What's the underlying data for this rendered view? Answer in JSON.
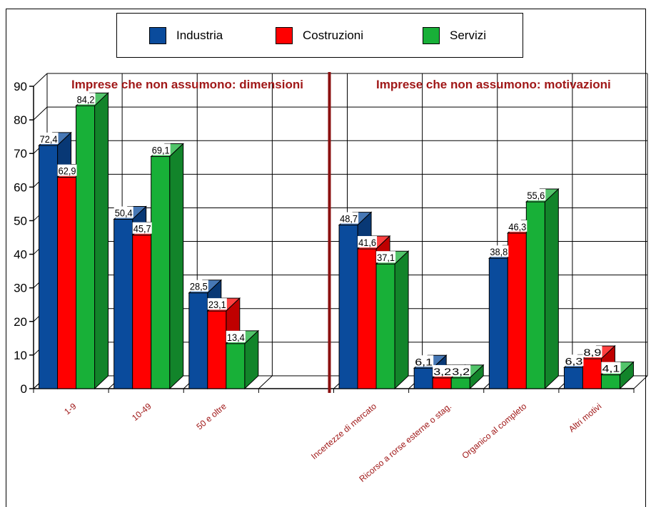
{
  "chart_data": {
    "type": "bar",
    "style": "3d-grouped",
    "section_titles": [
      "Imprese che non assumono:  dimensioni",
      "Imprese che non assumono:  motivazioni"
    ],
    "categories": [
      "1-9",
      "10-49",
      "50 e oltre",
      "",
      "Incertezze di mercato",
      "Ricorso a rorse esterne o stag.",
      "Organico al completo",
      "Altri motivi"
    ],
    "series": [
      {
        "name": "Industria",
        "color": "#0a4b9c",
        "values": [
          72.4,
          50.4,
          28.5,
          null,
          48.7,
          6.1,
          38.8,
          6.3
        ],
        "labels": [
          "72,4",
          "50,4",
          "28,5",
          "",
          "48,7",
          "6,1",
          "38,8",
          "6,3"
        ]
      },
      {
        "name": "Costruzioni",
        "color": "#ff0000",
        "values": [
          62.9,
          45.7,
          23.1,
          null,
          41.6,
          3.2,
          46.3,
          8.9
        ],
        "labels": [
          "62,9",
          "45,7",
          "23,1",
          "",
          "41,6",
          "3,2",
          "46,3",
          "8,9"
        ]
      },
      {
        "name": "Servizi",
        "color": "#18b038",
        "values": [
          84.2,
          69.1,
          13.4,
          null,
          37.1,
          3.2,
          55.6,
          4.1
        ],
        "labels": [
          "84,2",
          "69,1",
          "13,4",
          "",
          "37,1",
          "3,2",
          "55,6",
          "4,1"
        ]
      }
    ],
    "yticks": [
      "0",
      "10",
      "20",
      "30",
      "40",
      "50",
      "60",
      "70",
      "80",
      "90"
    ],
    "ylim": [
      0,
      90
    ],
    "grid": true,
    "legend_position": "top-center",
    "separator_color": "#8b1010",
    "category_label_color": "#a01818"
  }
}
